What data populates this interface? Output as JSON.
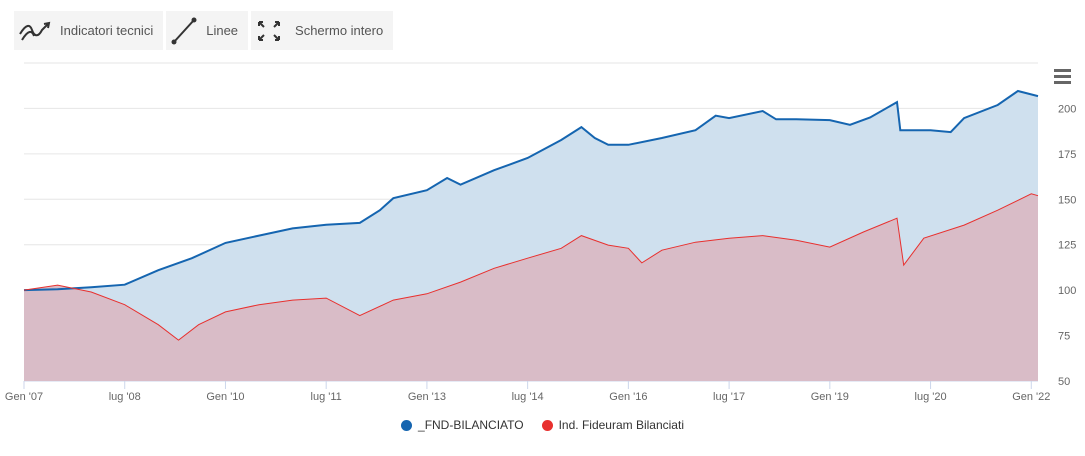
{
  "toolbar": {
    "indicators": "Indicatori tecnici",
    "lines": "Linee",
    "fullscreen": "Schermo intero"
  },
  "chart_data": {
    "type": "area",
    "title": "",
    "xlabel": "",
    "ylabel": "",
    "ylim": [
      50,
      225
    ],
    "yticks": [
      50,
      75,
      100,
      125,
      150,
      175,
      200
    ],
    "ytick_labels": [
      "50",
      "75",
      "100",
      "125",
      "150",
      "175",
      "200"
    ],
    "xlim": [
      2007.0,
      2022.1
    ],
    "xticks": [
      2007.0,
      2008.5,
      2010.0,
      2011.5,
      2013.0,
      2014.5,
      2016.0,
      2017.5,
      2019.0,
      2020.5,
      2022.0
    ],
    "xtick_labels": [
      "Gen '07",
      "lug '08",
      "Gen '10",
      "lug '11",
      "Gen '13",
      "lug '14",
      "Gen '16",
      "lug '17",
      "Gen '19",
      "lug '20",
      "Gen '22"
    ],
    "grid": true,
    "legend_position": "bottom-center",
    "series": [
      {
        "name": "_FND-BILANCIATO",
        "color": "#1565b0",
        "fill": "#cfe0ee",
        "x": [
          2007,
          2007.5,
          2008,
          2008.5,
          2009,
          2009.5,
          2010,
          2010.5,
          2011,
          2011.5,
          2012,
          2012.3,
          2012.5,
          2013,
          2013.3,
          2013.5,
          2014,
          2014.5,
          2015,
          2015.3,
          2015.5,
          2015.7,
          2016,
          2016.5,
          2017,
          2017.3,
          2017.5,
          2018,
          2018.2,
          2018.5,
          2019,
          2019.3,
          2019.6,
          2020.0,
          2020.05,
          2020.5,
          2020.8,
          2021,
          2021.5,
          2021.8,
          2022.1
        ],
        "y": [
          100,
          100.5,
          101.6,
          103,
          111,
          117.6,
          126,
          130,
          134,
          136,
          137,
          144,
          150.6,
          155,
          161.7,
          158,
          166,
          172.7,
          182.6,
          189.7,
          183.7,
          180,
          180,
          183.7,
          188,
          196,
          194.7,
          198.6,
          194,
          194,
          193.6,
          191,
          195,
          203.5,
          188,
          188,
          187,
          194.7,
          201.9,
          209.6,
          206.8
        ]
      },
      {
        "name": "Ind. Fideuram Bilanciati",
        "color": "#e8302e",
        "fill": "#d9bcc7",
        "x": [
          2007,
          2007.5,
          2008,
          2008.5,
          2009,
          2009.3,
          2009.6,
          2010,
          2010.5,
          2011,
          2011.5,
          2012,
          2012.5,
          2013,
          2013.5,
          2014,
          2014.5,
          2015,
          2015.3,
          2015.7,
          2016,
          2016.2,
          2016.5,
          2017,
          2017.5,
          2018,
          2018.5,
          2019,
          2019.5,
          2020.0,
          2020.1,
          2020.4,
          2021,
          2021.5,
          2022,
          2022.1
        ],
        "y": [
          100,
          102.8,
          99,
          92,
          81,
          72.5,
          81,
          88,
          92,
          94.5,
          95.6,
          86,
          94.5,
          98,
          104.4,
          112,
          117.6,
          123,
          130,
          124.8,
          123,
          115,
          122,
          126.4,
          128.6,
          130,
          127.5,
          123.7,
          132,
          139.6,
          113.8,
          128.6,
          135.8,
          144,
          153,
          152
        ]
      }
    ]
  }
}
